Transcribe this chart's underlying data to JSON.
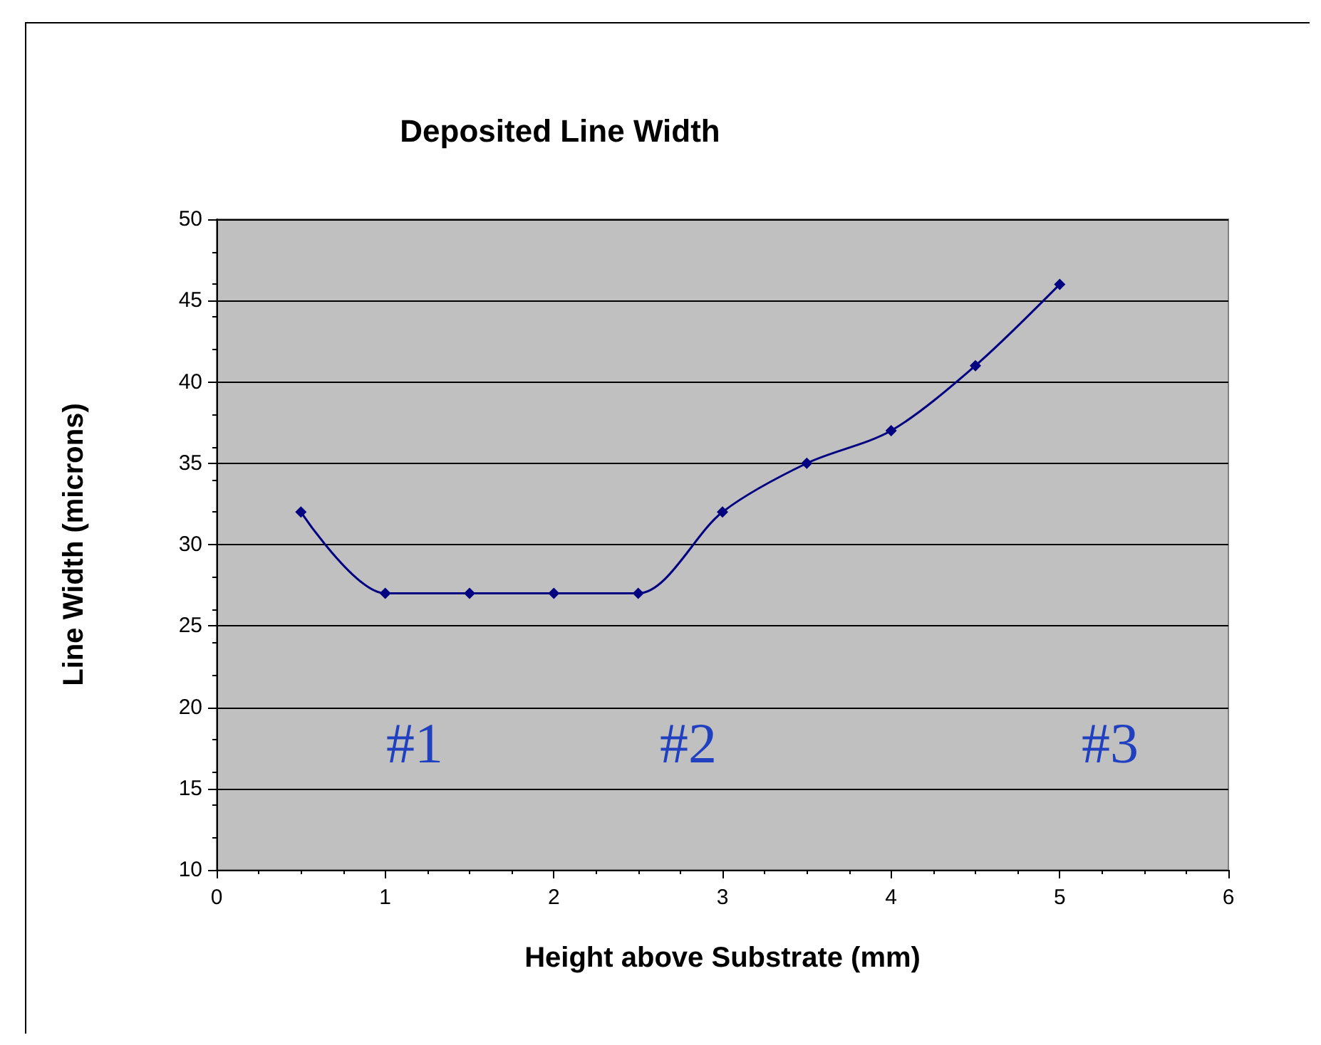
{
  "chart_data": {
    "type": "line",
    "title": "Deposited Line Width",
    "xlabel": "Height above Substrate (mm)",
    "ylabel": "Line Width (microns)",
    "x": [
      0.5,
      1,
      1.5,
      2,
      2.5,
      3,
      3.5,
      4,
      4.5,
      5
    ],
    "series": [
      {
        "color": "#000080",
        "values": [
          32,
          27,
          27,
          27,
          27,
          32,
          35,
          37,
          41,
          46
        ]
      }
    ],
    "xlim": [
      0,
      6
    ],
    "xticks": [
      0,
      1,
      2,
      3,
      4,
      5,
      6
    ],
    "ylim": [
      10,
      50
    ],
    "yticks": [
      10,
      15,
      20,
      25,
      30,
      35,
      40,
      45,
      50
    ],
    "grid": "y",
    "marker": "diamond",
    "line_style": "solid",
    "annotations": [
      "#1",
      "#2",
      "#3"
    ]
  }
}
